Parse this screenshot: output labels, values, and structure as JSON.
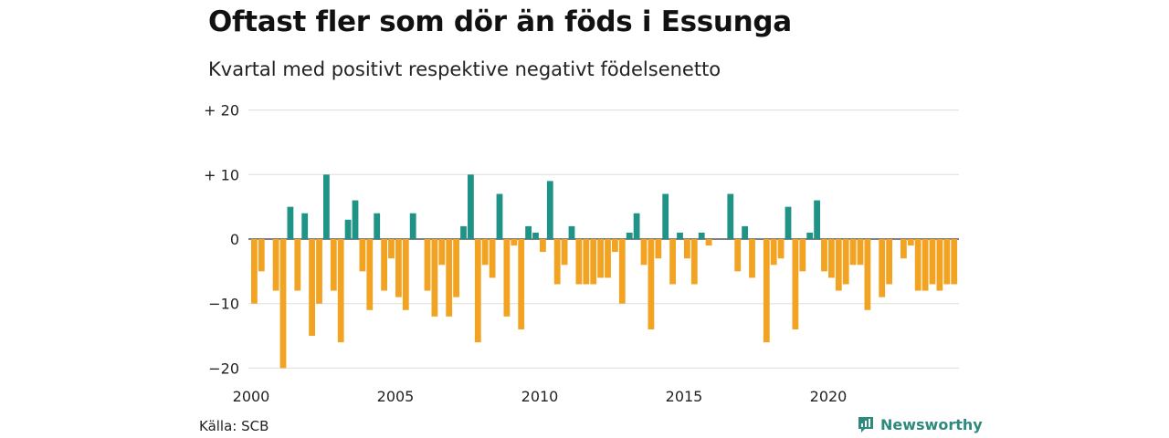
{
  "title": "Oftast fler som dör än föds i Essunga",
  "subtitle": "Kvartal med positivt respektive negativt födelsenetto",
  "source": "Källa: SCB",
  "brand": {
    "name": "Newsworthy",
    "icon": "newsworthy-logo-icon"
  },
  "colors": {
    "positive": "#1f9385",
    "negative": "#f2a322",
    "grid": "#dddddd",
    "zero": "#333333"
  },
  "chart_data": {
    "type": "bar",
    "title": "Oftast fler som dör än föds i Essunga",
    "subtitle": "Kvartal med positivt respektive negativt födelsenetto",
    "xlabel": "",
    "ylabel": "",
    "ylim": [
      -20,
      20
    ],
    "yticks": [
      {
        "value": 20,
        "label": "+ 20"
      },
      {
        "value": 10,
        "label": "+ 10"
      },
      {
        "value": 0,
        "label": "0"
      },
      {
        "value": -10,
        "label": "−10"
      },
      {
        "value": -20,
        "label": "−20"
      }
    ],
    "xticks": [
      {
        "quarter_index": 0,
        "label": "2000"
      },
      {
        "quarter_index": 20,
        "label": "2005"
      },
      {
        "quarter_index": 40,
        "label": "2010"
      },
      {
        "quarter_index": 60,
        "label": "2015"
      },
      {
        "quarter_index": 80,
        "label": "2020"
      }
    ],
    "grid": true,
    "start": "2000 Q1",
    "values": [
      -10,
      -5,
      0,
      -8,
      -20,
      5,
      -8,
      4,
      -15,
      -10,
      10,
      -8,
      -16,
      3,
      6,
      -5,
      -11,
      4,
      -8,
      -3,
      -9,
      -11,
      4,
      0,
      -8,
      -12,
      -4,
      -12,
      -9,
      2,
      10,
      -16,
      -4,
      -6,
      7,
      -12,
      -1,
      -14,
      2,
      1,
      -2,
      9,
      -7,
      -4,
      2,
      -7,
      -7,
      -7,
      -6,
      -6,
      -2,
      -10,
      1,
      4,
      -4,
      -14,
      -3,
      7,
      -7,
      1,
      -3,
      -7,
      1,
      -1,
      0,
      0,
      7,
      -5,
      2,
      -6,
      0,
      -16,
      -4,
      -3,
      5,
      -14,
      -5,
      1,
      6,
      -5,
      -6,
      -8,
      -7,
      -4,
      -4,
      -11,
      0,
      -9,
      -7,
      0,
      -3,
      -1,
      -8,
      -8,
      -7,
      -8,
      -7,
      -7
    ]
  }
}
